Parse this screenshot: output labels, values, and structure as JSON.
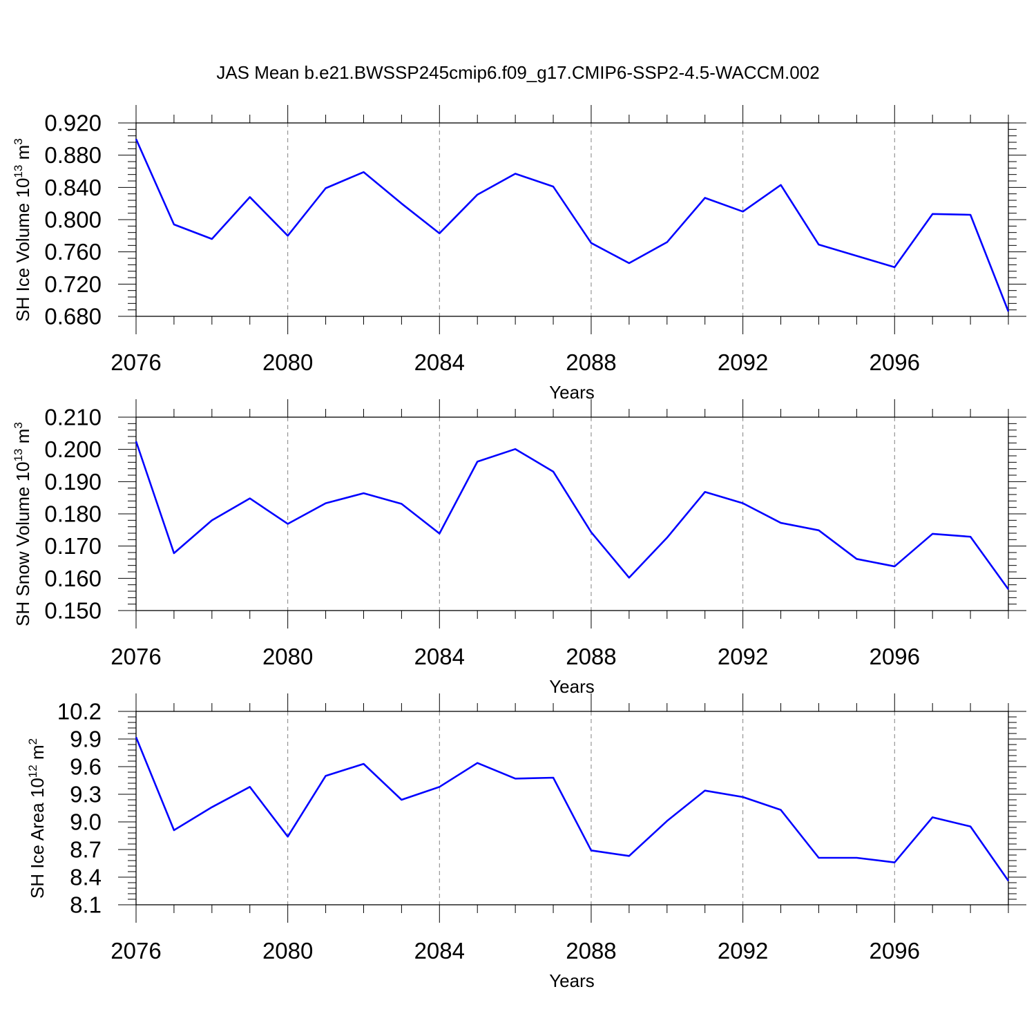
{
  "title": "JAS Mean b.e21.BWSSP245cmip6.f09_g17.CMIP6-SSP2-4.5-WACCM.002",
  "colors": {
    "series": "#0000ff",
    "grid": "#808080",
    "axes": "#000000"
  },
  "chart_data": [
    {
      "type": "line",
      "xlabel": "Years",
      "ylabel": {
        "main": "SH Ice Volume 10",
        "sup": "13",
        "unit": " m",
        "unit_sup": "3"
      },
      "xlim": [
        2076,
        2099
      ],
      "ylim": [
        0.68,
        0.92
      ],
      "xticks": [
        "2076",
        "2080",
        "2084",
        "2088",
        "2092",
        "2096"
      ],
      "yticks": [
        "0.680",
        "0.720",
        "0.760",
        "0.800",
        "0.840",
        "0.880",
        "0.920"
      ],
      "grid": "dashed vertical at major x ticks",
      "x": [
        2076,
        2077,
        2078,
        2079,
        2080,
        2081,
        2082,
        2083,
        2084,
        2085,
        2086,
        2087,
        2088,
        2089,
        2090,
        2091,
        2092,
        2093,
        2094,
        2095,
        2096,
        2097,
        2098,
        2099
      ],
      "y": [
        0.9,
        0.794,
        0.776,
        0.828,
        0.78,
        0.839,
        0.859,
        0.82,
        0.783,
        0.831,
        0.857,
        0.841,
        0.771,
        0.746,
        0.772,
        0.827,
        0.81,
        0.843,
        0.769,
        0.755,
        0.741,
        0.807,
        0.806,
        0.686
      ]
    },
    {
      "type": "line",
      "xlabel": "Years",
      "ylabel": {
        "main": "SH Snow Volume 10",
        "sup": "13",
        "unit": " m",
        "unit_sup": "3"
      },
      "xlim": [
        2076,
        2099
      ],
      "ylim": [
        0.15,
        0.21
      ],
      "xticks": [
        "2076",
        "2080",
        "2084",
        "2088",
        "2092",
        "2096"
      ],
      "yticks": [
        "0.150",
        "0.160",
        "0.170",
        "0.180",
        "0.190",
        "0.200",
        "0.210"
      ],
      "grid": "dashed vertical at major x ticks",
      "x": [
        2076,
        2077,
        2078,
        2079,
        2080,
        2081,
        2082,
        2083,
        2084,
        2085,
        2086,
        2087,
        2088,
        2089,
        2090,
        2091,
        2092,
        2093,
        2094,
        2095,
        2096,
        2097,
        2098,
        2099
      ],
      "y": [
        0.2025,
        0.1678,
        0.178,
        0.1848,
        0.1769,
        0.1833,
        0.1864,
        0.1831,
        0.1739,
        0.1962,
        0.2001,
        0.1931,
        0.1743,
        0.1602,
        0.1726,
        0.1868,
        0.1833,
        0.1772,
        0.1749,
        0.166,
        0.1637,
        0.1738,
        0.1729,
        0.1566
      ]
    },
    {
      "type": "line",
      "xlabel": "Years",
      "ylabel": {
        "main": "SH Ice Area 10",
        "sup": "12",
        "unit": " m",
        "unit_sup": "2"
      },
      "xlim": [
        2076,
        2099
      ],
      "ylim": [
        8.1,
        10.2
      ],
      "xticks": [
        "2076",
        "2080",
        "2084",
        "2088",
        "2092",
        "2096"
      ],
      "yticks": [
        "8.1",
        "8.4",
        "8.7",
        "9.0",
        "9.3",
        "9.6",
        "9.9",
        "10.2"
      ],
      "grid": "dashed vertical at major x ticks",
      "x": [
        2076,
        2077,
        2078,
        2079,
        2080,
        2081,
        2082,
        2083,
        2084,
        2085,
        2086,
        2087,
        2088,
        2089,
        2090,
        2091,
        2092,
        2093,
        2094,
        2095,
        2096,
        2097,
        2098,
        2099
      ],
      "y": [
        9.92,
        8.91,
        9.16,
        9.38,
        8.84,
        9.5,
        9.63,
        9.24,
        9.38,
        9.64,
        9.47,
        9.48,
        8.69,
        8.63,
        9.01,
        9.34,
        9.27,
        9.13,
        8.61,
        8.61,
        8.56,
        9.05,
        8.95,
        8.36
      ]
    }
  ]
}
